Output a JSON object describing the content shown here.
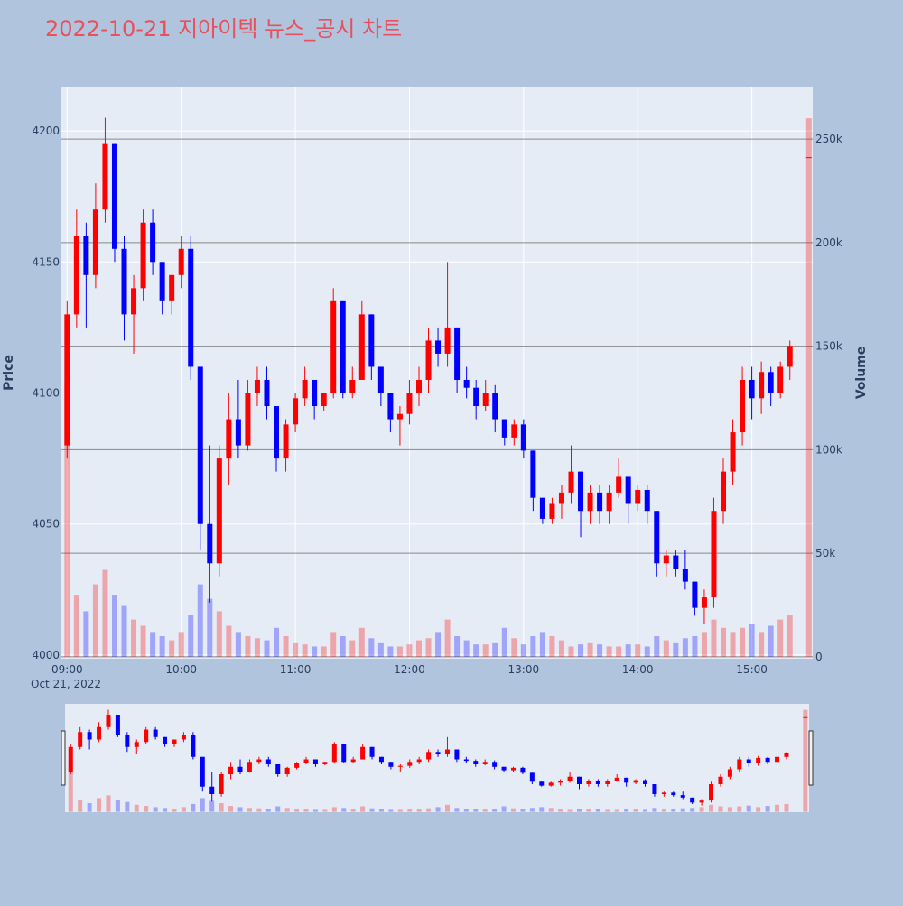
{
  "chart_data": {
    "type": "candlestick",
    "title": "2022-10-21 지아이텍 뉴스_공시 차트",
    "x": [
      "09:00",
      "09:05",
      "09:10",
      "09:15",
      "09:20",
      "09:25",
      "09:30",
      "09:35",
      "09:40",
      "09:45",
      "09:50",
      "09:55",
      "10:00",
      "10:05",
      "10:10",
      "10:15",
      "10:20",
      "10:25",
      "10:30",
      "10:35",
      "10:40",
      "10:45",
      "10:50",
      "10:55",
      "11:00",
      "11:05",
      "11:10",
      "11:15",
      "11:20",
      "11:25",
      "11:30",
      "11:35",
      "11:40",
      "11:45",
      "11:50",
      "11:55",
      "12:00",
      "12:05",
      "12:10",
      "12:15",
      "12:20",
      "12:25",
      "12:30",
      "12:35",
      "12:40",
      "12:45",
      "12:50",
      "12:55",
      "13:00",
      "13:05",
      "13:10",
      "13:15",
      "13:20",
      "13:25",
      "13:30",
      "13:35",
      "13:40",
      "13:45",
      "13:50",
      "13:55",
      "14:00",
      "14:05",
      "14:10",
      "14:15",
      "14:20",
      "14:25",
      "14:30",
      "14:35",
      "14:40",
      "14:45",
      "14:50",
      "14:55",
      "15:00",
      "15:05",
      "15:10",
      "15:15",
      "15:20",
      "15:30"
    ],
    "open": [
      4080,
      4130,
      4160,
      4145,
      4170,
      4195,
      4155,
      4130,
      4140,
      4165,
      4150,
      4135,
      4145,
      4155,
      4110,
      4050,
      4035,
      4075,
      4090,
      4080,
      4100,
      4105,
      4095,
      4075,
      4088,
      4098,
      4105,
      4095,
      4100,
      4135,
      4100,
      4105,
      4130,
      4110,
      4100,
      4090,
      4092,
      4100,
      4105,
      4120,
      4115,
      4125,
      4105,
      4102,
      4095,
      4100,
      4090,
      4083,
      4088,
      4078,
      4060,
      4052,
      4058,
      4062,
      4070,
      4055,
      4062,
      4055,
      4062,
      4068,
      4058,
      4063,
      4055,
      4035,
      4038,
      4033,
      4028,
      4018,
      4022,
      4055,
      4070,
      4085,
      4105,
      4098,
      4108,
      4100,
      4110,
      4190
    ],
    "high": [
      4135,
      4170,
      4165,
      4180,
      4205,
      4195,
      4160,
      4145,
      4170,
      4170,
      4150,
      4145,
      4160,
      4160,
      4110,
      4080,
      4080,
      4100,
      4105,
      4105,
      4110,
      4110,
      4095,
      4090,
      4100,
      4110,
      4105,
      4100,
      4140,
      4135,
      4110,
      4135,
      4130,
      4110,
      4100,
      4095,
      4105,
      4110,
      4125,
      4125,
      4150,
      4125,
      4110,
      4105,
      4105,
      4103,
      4090,
      4090,
      4090,
      4078,
      4060,
      4060,
      4065,
      4080,
      4070,
      4065,
      4065,
      4065,
      4075,
      4068,
      4065,
      4065,
      4055,
      4040,
      4040,
      4040,
      4028,
      4025,
      4060,
      4075,
      4090,
      4110,
      4110,
      4112,
      4110,
      4112,
      4120,
      4190
    ],
    "low": [
      4075,
      4125,
      4125,
      4140,
      4165,
      4150,
      4120,
      4115,
      4135,
      4145,
      4130,
      4130,
      4140,
      4105,
      4040,
      4020,
      4030,
      4065,
      4075,
      4078,
      4095,
      4090,
      4070,
      4070,
      4085,
      4095,
      4090,
      4093,
      4098,
      4098,
      4098,
      4105,
      4105,
      4095,
      4085,
      4080,
      4088,
      4095,
      4100,
      4110,
      4110,
      4100,
      4098,
      4090,
      4093,
      4085,
      4080,
      4080,
      4075,
      4055,
      4050,
      4050,
      4052,
      4058,
      4045,
      4050,
      4050,
      4050,
      4060,
      4050,
      4055,
      4050,
      4030,
      4030,
      4030,
      4025,
      4015,
      4012,
      4018,
      4050,
      4065,
      4080,
      4090,
      4092,
      4095,
      4098,
      4105,
      4190
    ],
    "close": [
      4130,
      4160,
      4145,
      4170,
      4195,
      4155,
      4130,
      4140,
      4165,
      4150,
      4135,
      4145,
      4155,
      4110,
      4050,
      4035,
      4075,
      4090,
      4080,
      4100,
      4105,
      4095,
      4075,
      4088,
      4098,
      4105,
      4095,
      4100,
      4135,
      4100,
      4105,
      4130,
      4110,
      4100,
      4090,
      4092,
      4100,
      4105,
      4120,
      4115,
      4125,
      4105,
      4102,
      4095,
      4100,
      4090,
      4083,
      4088,
      4078,
      4060,
      4052,
      4058,
      4062,
      4070,
      4055,
      4062,
      4055,
      4062,
      4068,
      4058,
      4063,
      4055,
      4035,
      4038,
      4033,
      4028,
      4018,
      4022,
      4055,
      4070,
      4085,
      4105,
      4098,
      4108,
      4100,
      4110,
      4118,
      4190
    ],
    "volume": [
      134000,
      30000,
      22000,
      35000,
      42000,
      30000,
      25000,
      18000,
      15000,
      12000,
      10000,
      8000,
      12000,
      20000,
      35000,
      28000,
      22000,
      15000,
      12000,
      10000,
      9000,
      8000,
      14000,
      10000,
      7000,
      6000,
      5000,
      5000,
      12000,
      10000,
      8000,
      14000,
      9000,
      7000,
      5000,
      5000,
      6000,
      8000,
      9000,
      12000,
      18000,
      10000,
      8000,
      6000,
      6000,
      7000,
      14000,
      9000,
      6000,
      10000,
      12000,
      10000,
      8000,
      5000,
      6000,
      7000,
      6000,
      5000,
      5000,
      6000,
      6000,
      5000,
      10000,
      8000,
      7000,
      9000,
      10000,
      12000,
      18000,
      14000,
      12000,
      14000,
      16000,
      12000,
      15000,
      18000,
      20000,
      260000
    ],
    "increasing_color": "#ff0000",
    "decreasing_color": "#0000ff",
    "xlim": [
      "08:57",
      "15:32"
    ],
    "xticks": [
      "09:00",
      "10:00",
      "11:00",
      "12:00",
      "13:00",
      "14:00",
      "15:00"
    ],
    "x_date_label": "Oct 21, 2022",
    "ylim": [
      3998.6,
      4216.9
    ],
    "yticks": [
      4000,
      4050,
      4100,
      4150,
      4200
    ],
    "y2lim": [
      -900,
      275300
    ],
    "y2ticks": [
      0,
      {
        "value": 50000,
        "label": "50k"
      },
      {
        "value": 100000,
        "label": "100k"
      },
      {
        "value": 150000,
        "label": "150k"
      },
      {
        "value": 200000,
        "label": "200k"
      },
      {
        "value": 250000,
        "label": "250k"
      }
    ],
    "y_title": "Price",
    "y2_title": "Volume"
  }
}
